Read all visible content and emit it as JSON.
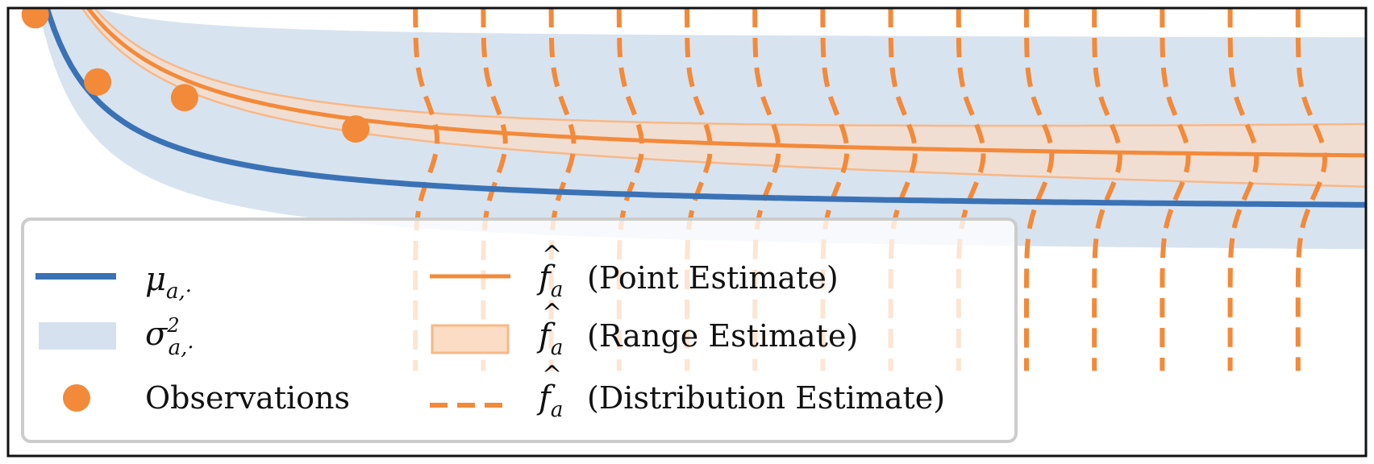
{
  "chart_data": {
    "type": "line",
    "title": "",
    "xlabel": "",
    "ylabel": "",
    "xlim": [
      0,
      1
    ],
    "ylim": [
      0,
      1
    ],
    "grid": false,
    "legend_placement": "bottom-left",
    "observations": {
      "x": [
        0.02,
        0.066,
        0.13,
        0.256
      ],
      "y": [
        0.985,
        0.835,
        0.8,
        0.73
      ]
    },
    "distribution_x": [
      0.3,
      0.35,
      0.4,
      0.45,
      0.5,
      0.55,
      0.6,
      0.65,
      0.7,
      0.75,
      0.8,
      0.85,
      0.9,
      0.95
    ],
    "distribution_center_y": [
      0.705,
      0.7,
      0.696,
      0.692,
      0.688,
      0.684,
      0.681,
      0.678,
      0.675,
      0.672,
      0.669,
      0.667,
      0.664,
      0.662
    ],
    "colors": {
      "mu": "#3a72b5",
      "sigma_fill": "#d6e1ef",
      "orange": "#f28a3a",
      "orange_fill": "#fcdcc5",
      "frame": "#111111",
      "legend_border": "#cccccc"
    }
  },
  "legend": {
    "mu_symbol": "μ",
    "mu_sub": "a,·",
    "sigma_symbol": "σ",
    "sigma_sup": "2",
    "sigma_sub": "a,·",
    "observations_label": "Observations",
    "f_symbol": "f",
    "f_sub": "a",
    "point_estimate_label": "(Point Estimate)",
    "range_estimate_label": "(Range Estimate)",
    "distribution_estimate_label": "(Distribution Estimate)"
  }
}
